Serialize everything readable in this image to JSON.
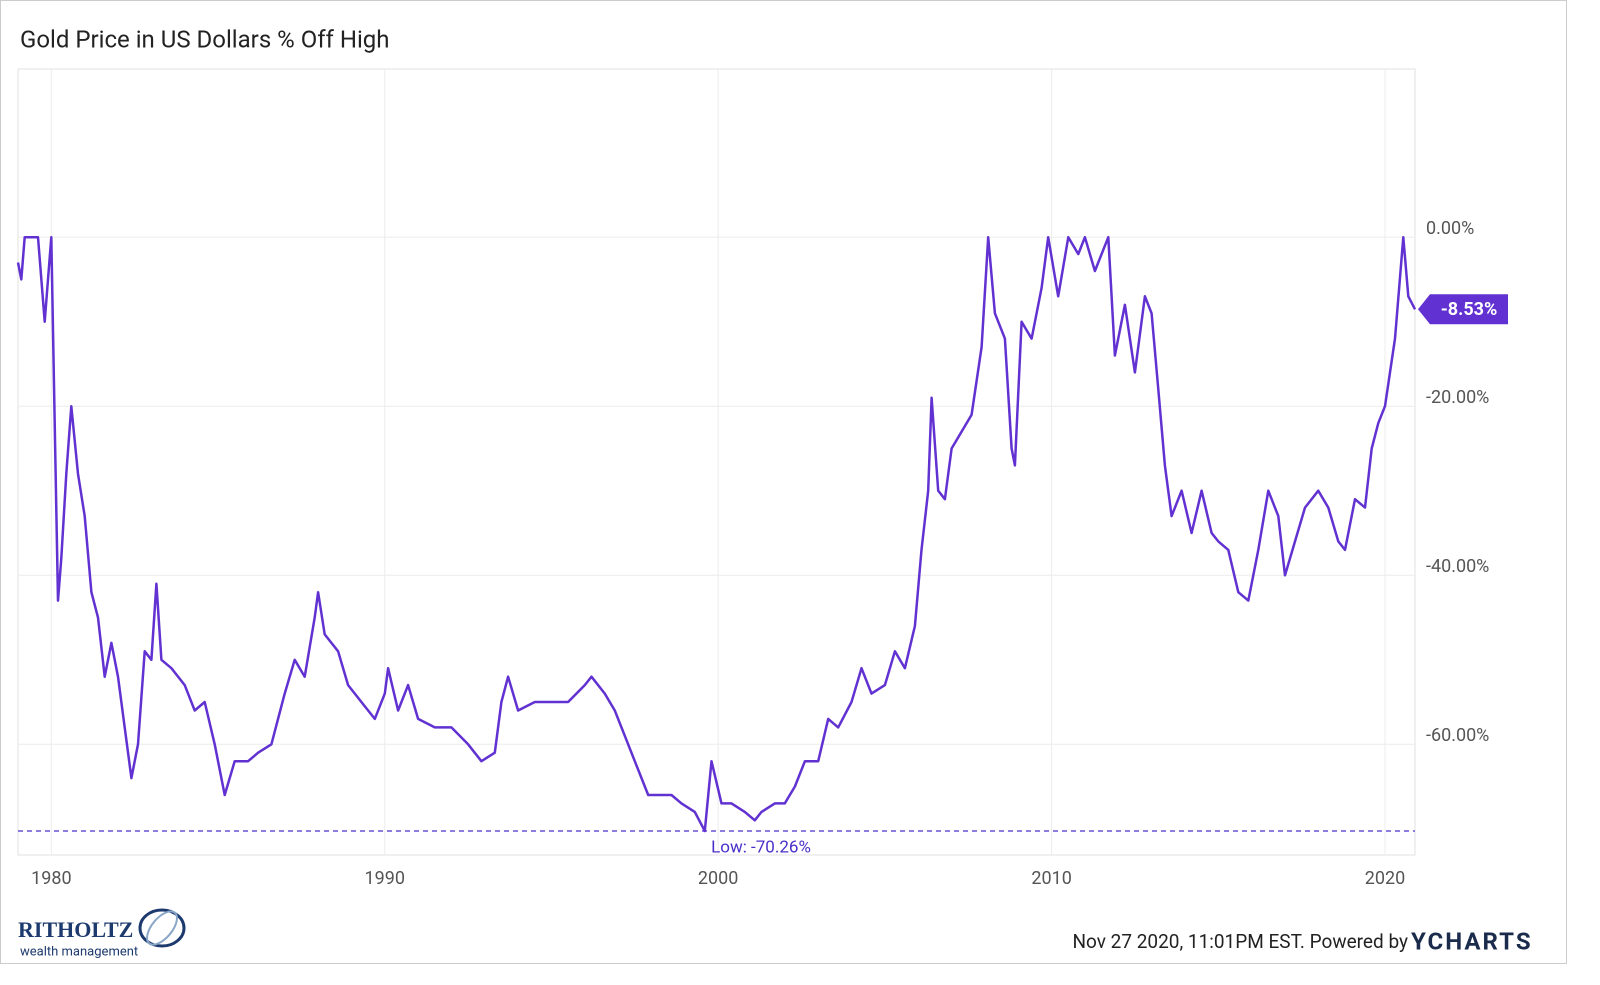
{
  "chart_data": {
    "type": "line",
    "title": "Gold Price in US Dollars % Off High",
    "x": [
      1979.0,
      1979.1,
      1979.2,
      1979.4,
      1979.6,
      1979.8,
      1980.0,
      1980.1,
      1980.2,
      1980.3,
      1980.45,
      1980.6,
      1980.8,
      1981.0,
      1981.2,
      1981.4,
      1981.6,
      1981.8,
      1982.0,
      1982.2,
      1982.4,
      1982.6,
      1982.8,
      1983.0,
      1983.15,
      1983.3,
      1983.6,
      1984.0,
      1984.3,
      1984.6,
      1984.9,
      1985.2,
      1985.5,
      1985.9,
      1986.2,
      1986.6,
      1987.0,
      1987.3,
      1987.6,
      1987.9,
      1988.0,
      1988.2,
      1988.6,
      1988.9,
      1989.3,
      1989.7,
      1990.0,
      1990.1,
      1990.4,
      1990.7,
      1991.0,
      1991.5,
      1992.0,
      1992.5,
      1992.9,
      1993.3,
      1993.5,
      1993.7,
      1994.0,
      1994.5,
      1995.0,
      1995.5,
      1996.0,
      1996.2,
      1996.6,
      1996.9,
      1997.2,
      1997.5,
      1997.9,
      1998.2,
      1998.6,
      1998.9,
      1999.3,
      1999.6,
      1999.8,
      2000.1,
      2000.4,
      2000.8,
      2001.1,
      2001.3,
      2001.7,
      2002.0,
      2002.3,
      2002.6,
      2003.0,
      2003.3,
      2003.6,
      2004.0,
      2004.3,
      2004.6,
      2005.0,
      2005.3,
      2005.6,
      2005.9,
      2006.1,
      2006.3,
      2006.4,
      2006.6,
      2006.8,
      2007.0,
      2007.3,
      2007.6,
      2007.9,
      2008.1,
      2008.3,
      2008.6,
      2008.8,
      2008.9,
      2009.1,
      2009.4,
      2009.7,
      2009.9,
      2010.2,
      2010.5,
      2010.8,
      2011.0,
      2011.3,
      2011.7,
      2011.9,
      2012.2,
      2012.5,
      2012.8,
      2013.0,
      2013.2,
      2013.4,
      2013.6,
      2013.9,
      2014.2,
      2014.5,
      2014.8,
      2015.0,
      2015.3,
      2015.6,
      2015.9,
      2016.2,
      2016.5,
      2016.8,
      2017.0,
      2017.3,
      2017.6,
      2018.0,
      2018.3,
      2018.6,
      2018.8,
      2019.1,
      2019.4,
      2019.6,
      2019.8,
      2020.0,
      2020.3,
      2020.55,
      2020.7,
      2020.9
    ],
    "series": [
      {
        "name": "Gold Price in US Dollars % Off High",
        "color": "#6132d1",
        "values": [
          -3,
          -5,
          0,
          0,
          0,
          -10,
          0,
          -22,
          -43,
          -38,
          -28,
          -20,
          -28,
          -33,
          -42,
          -45,
          -52,
          -48,
          -52,
          -58,
          -64,
          -60,
          -49,
          -50,
          -41,
          -50,
          -51,
          -53,
          -56,
          -55,
          -60,
          -66,
          -62,
          -62,
          -61,
          -60,
          -54,
          -50,
          -52,
          -45,
          -42,
          -47,
          -49,
          -53,
          -55,
          -57,
          -54,
          -51,
          -56,
          -53,
          -57,
          -58,
          -58,
          -60,
          -62,
          -61,
          -55,
          -52,
          -56,
          -55,
          -55,
          -55,
          -53,
          -52,
          -54,
          -56,
          -59,
          -62,
          -66,
          -66,
          -66,
          -67,
          -68,
          -70.26,
          -62,
          -67,
          -67,
          -68,
          -69,
          -68,
          -67,
          -67,
          -65,
          -62,
          -62,
          -57,
          -58,
          -55,
          -51,
          -54,
          -53,
          -49,
          -51,
          -46,
          -37,
          -30,
          -19,
          -30,
          -31,
          -25,
          -23,
          -21,
          -13,
          0,
          -9,
          -12,
          -25,
          -27,
          -10,
          -12,
          -6,
          0,
          -7,
          0,
          -2,
          0,
          -4,
          0,
          -14,
          -8,
          -16,
          -7,
          -9,
          -18,
          -27,
          -33,
          -30,
          -35,
          -30,
          -35,
          -36,
          -37,
          -42,
          -43,
          -37,
          -30,
          -33,
          -40,
          -36,
          -32,
          -30,
          -32,
          -36,
          -37,
          -31,
          -32,
          -25,
          -22,
          -20,
          -12,
          0,
          -7,
          -8.53
        ]
      }
    ],
    "xlim": [
      1979.0,
      2020.9
    ],
    "ylim": [
      -73.1,
      19.9
    ],
    "xticks": [
      1980,
      1990,
      2000,
      2010,
      2020
    ],
    "yticks": [
      {
        "value": 0,
        "label": "0.00%"
      },
      {
        "value": -20,
        "label": "-20.00%"
      },
      {
        "value": -40,
        "label": "-40.00%"
      },
      {
        "value": -60,
        "label": "-60.00%"
      }
    ],
    "grid": true,
    "low_line": {
      "value": -70.26,
      "label": "Low: -70.26%"
    },
    "end_label": {
      "value": -8.53,
      "label": "-8.53%"
    }
  },
  "footer": {
    "timestamp": "Nov 27 2020, 11:01PM EST. Powered by",
    "brand": "YCHARTS",
    "logo_name": "RITHOLTZ",
    "logo_sub": "wealth management"
  }
}
